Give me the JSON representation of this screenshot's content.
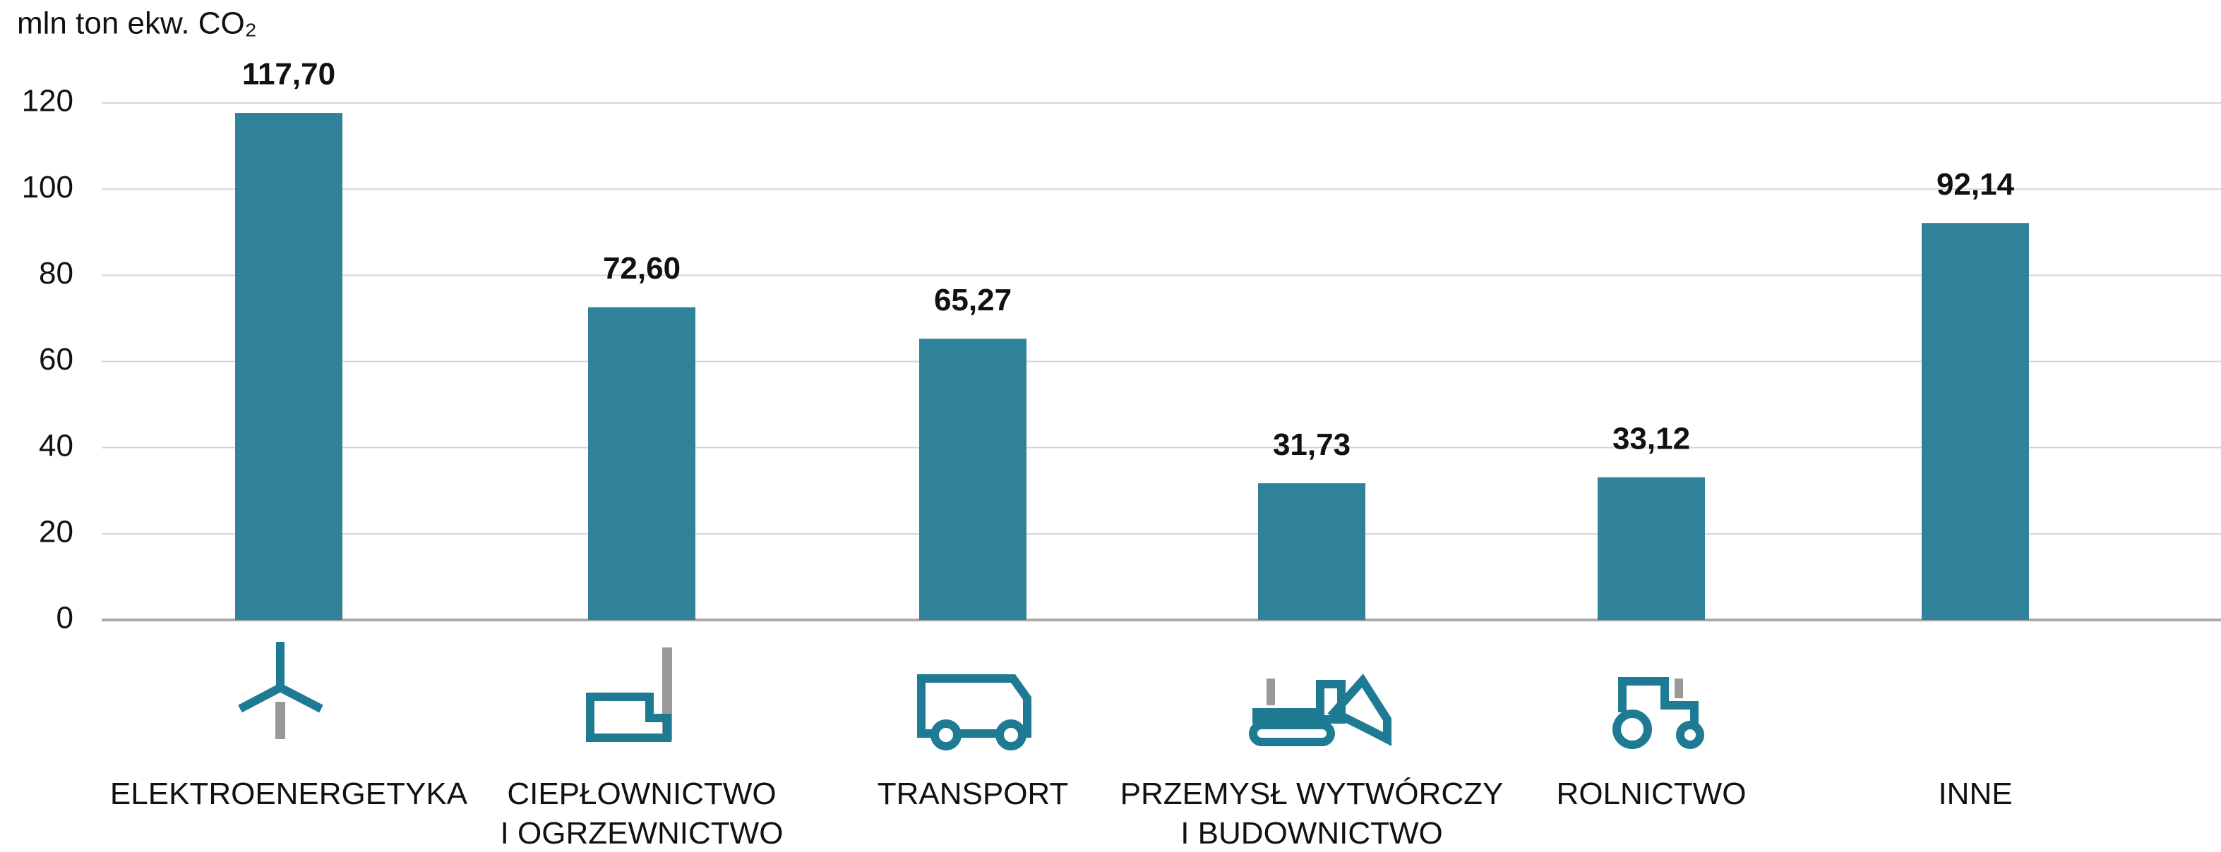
{
  "chart_data": {
    "type": "bar",
    "y_axis_label": "mln ton ekw. CO₂",
    "categories": [
      "ELEKTROENERGETYKA",
      "CIEPŁOWNICTWO\nI OGRZEWNICTWO",
      "TRANSPORT",
      "PRZEMYSŁ WYTWÓRCZY\nI BUDOWNICTWO",
      "ROLNICTWO",
      "INNE"
    ],
    "values": [
      117.7,
      72.6,
      65.27,
      31.73,
      33.12,
      92.14
    ],
    "value_labels": [
      "117,70",
      "72,60",
      "65,27",
      "31,73",
      "33,12",
      "92,14"
    ],
    "color": "#2f8299",
    "ylim": [
      0,
      120
    ],
    "yticks": [
      0,
      20,
      40,
      60,
      80,
      100,
      120
    ],
    "grid": true
  }
}
